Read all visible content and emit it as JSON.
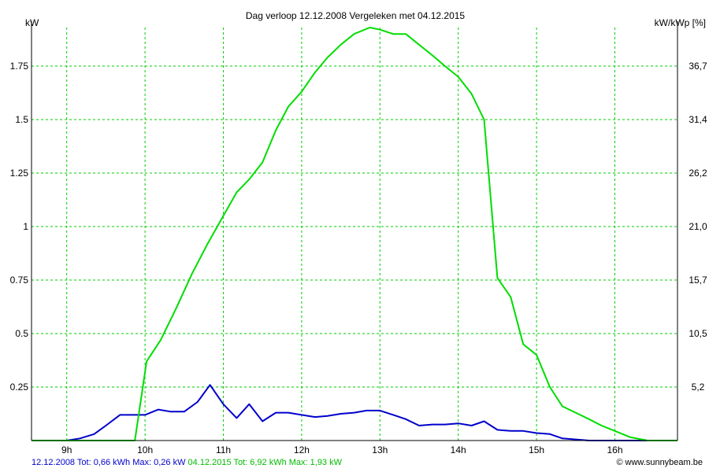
{
  "chart_data": {
    "type": "line",
    "title": "Dag  verloop 12.12.2008   Vergeleken met 04.12.2015",
    "ylabel": "kW",
    "y2label": "kW/kWp [%]",
    "xlim": [
      8.55,
      16.8
    ],
    "ylim": [
      0,
      1.93
    ],
    "x_ticks": [
      9,
      10,
      11,
      12,
      13,
      14,
      15,
      16
    ],
    "x_tick_labels": [
      "9h",
      "10h",
      "11h",
      "12h",
      "13h",
      "14h",
      "15h",
      "16h"
    ],
    "y_ticks": [
      0.25,
      0.5,
      0.75,
      1,
      1.25,
      1.5,
      1.75
    ],
    "y_tick_labels": [
      "0.25",
      "0.5",
      "0.75",
      "1",
      "1.25",
      "1.5",
      "1.75"
    ],
    "y2_tick_labels": [
      "5,2",
      "10,5",
      "15,7",
      "21,0",
      "26,2",
      "31,4",
      "36,7"
    ],
    "grid": true,
    "series": [
      {
        "name": "12.12.2008",
        "color": "#0000cc",
        "x": [
          8.55,
          9.0,
          9.17,
          9.35,
          9.5,
          9.68,
          9.85,
          10.0,
          10.17,
          10.33,
          10.5,
          10.67,
          10.83,
          11.0,
          11.17,
          11.33,
          11.5,
          11.67,
          11.83,
          12.0,
          12.17,
          12.33,
          12.5,
          12.67,
          12.83,
          13.0,
          13.17,
          13.33,
          13.5,
          13.67,
          13.83,
          14.0,
          14.17,
          14.33,
          14.5,
          14.67,
          14.83,
          15.0,
          15.17,
          15.33,
          15.5,
          15.67,
          15.83,
          16.0,
          16.2,
          16.4,
          16.6,
          16.8
        ],
        "y": [
          0,
          0,
          0.01,
          0.03,
          0.07,
          0.12,
          0.12,
          0.12,
          0.145,
          0.135,
          0.135,
          0.18,
          0.26,
          0.17,
          0.105,
          0.17,
          0.09,
          0.13,
          0.13,
          0.12,
          0.11,
          0.115,
          0.125,
          0.13,
          0.14,
          0.14,
          0.12,
          0.1,
          0.07,
          0.075,
          0.075,
          0.08,
          0.07,
          0.09,
          0.05,
          0.045,
          0.045,
          0.035,
          0.03,
          0.01,
          0.005,
          0,
          0,
          0,
          0,
          0,
          0,
          0
        ]
      },
      {
        "name": "04.12.2015",
        "color": "#00dd00",
        "x": [
          8.55,
          9.0,
          9.5,
          9.87,
          10.02,
          10.2,
          10.4,
          10.6,
          10.8,
          11.0,
          11.17,
          11.33,
          11.5,
          11.67,
          11.83,
          12.0,
          12.17,
          12.33,
          12.5,
          12.67,
          12.87,
          13.0,
          13.17,
          13.33,
          13.5,
          13.67,
          13.83,
          14.0,
          14.17,
          14.33,
          14.5,
          14.67,
          14.83,
          15.0,
          15.17,
          15.33,
          15.5,
          15.67,
          15.83,
          16.0,
          16.2,
          16.42,
          16.6,
          16.8
        ],
        "y": [
          0,
          0,
          0,
          0,
          0.37,
          0.47,
          0.62,
          0.78,
          0.92,
          1.05,
          1.16,
          1.22,
          1.3,
          1.45,
          1.56,
          1.63,
          1.72,
          1.79,
          1.85,
          1.9,
          1.93,
          1.92,
          1.9,
          1.9,
          1.85,
          1.8,
          1.75,
          1.7,
          1.62,
          1.5,
          0.76,
          0.67,
          0.45,
          0.4,
          0.25,
          0.16,
          0.13,
          0.1,
          0.07,
          0.045,
          0.015,
          0,
          0,
          0
        ]
      }
    ]
  },
  "footer": {
    "series1_text": "12.12.2008 Tot: 0,66 kWh Max: 0,26 kW",
    "series2_text": "04.12.2015 Tot: 6,92 kWh Max: 1,93 kW",
    "credit_icon": "copyright-icon",
    "credit_text": "www.sunnybeam.be"
  }
}
